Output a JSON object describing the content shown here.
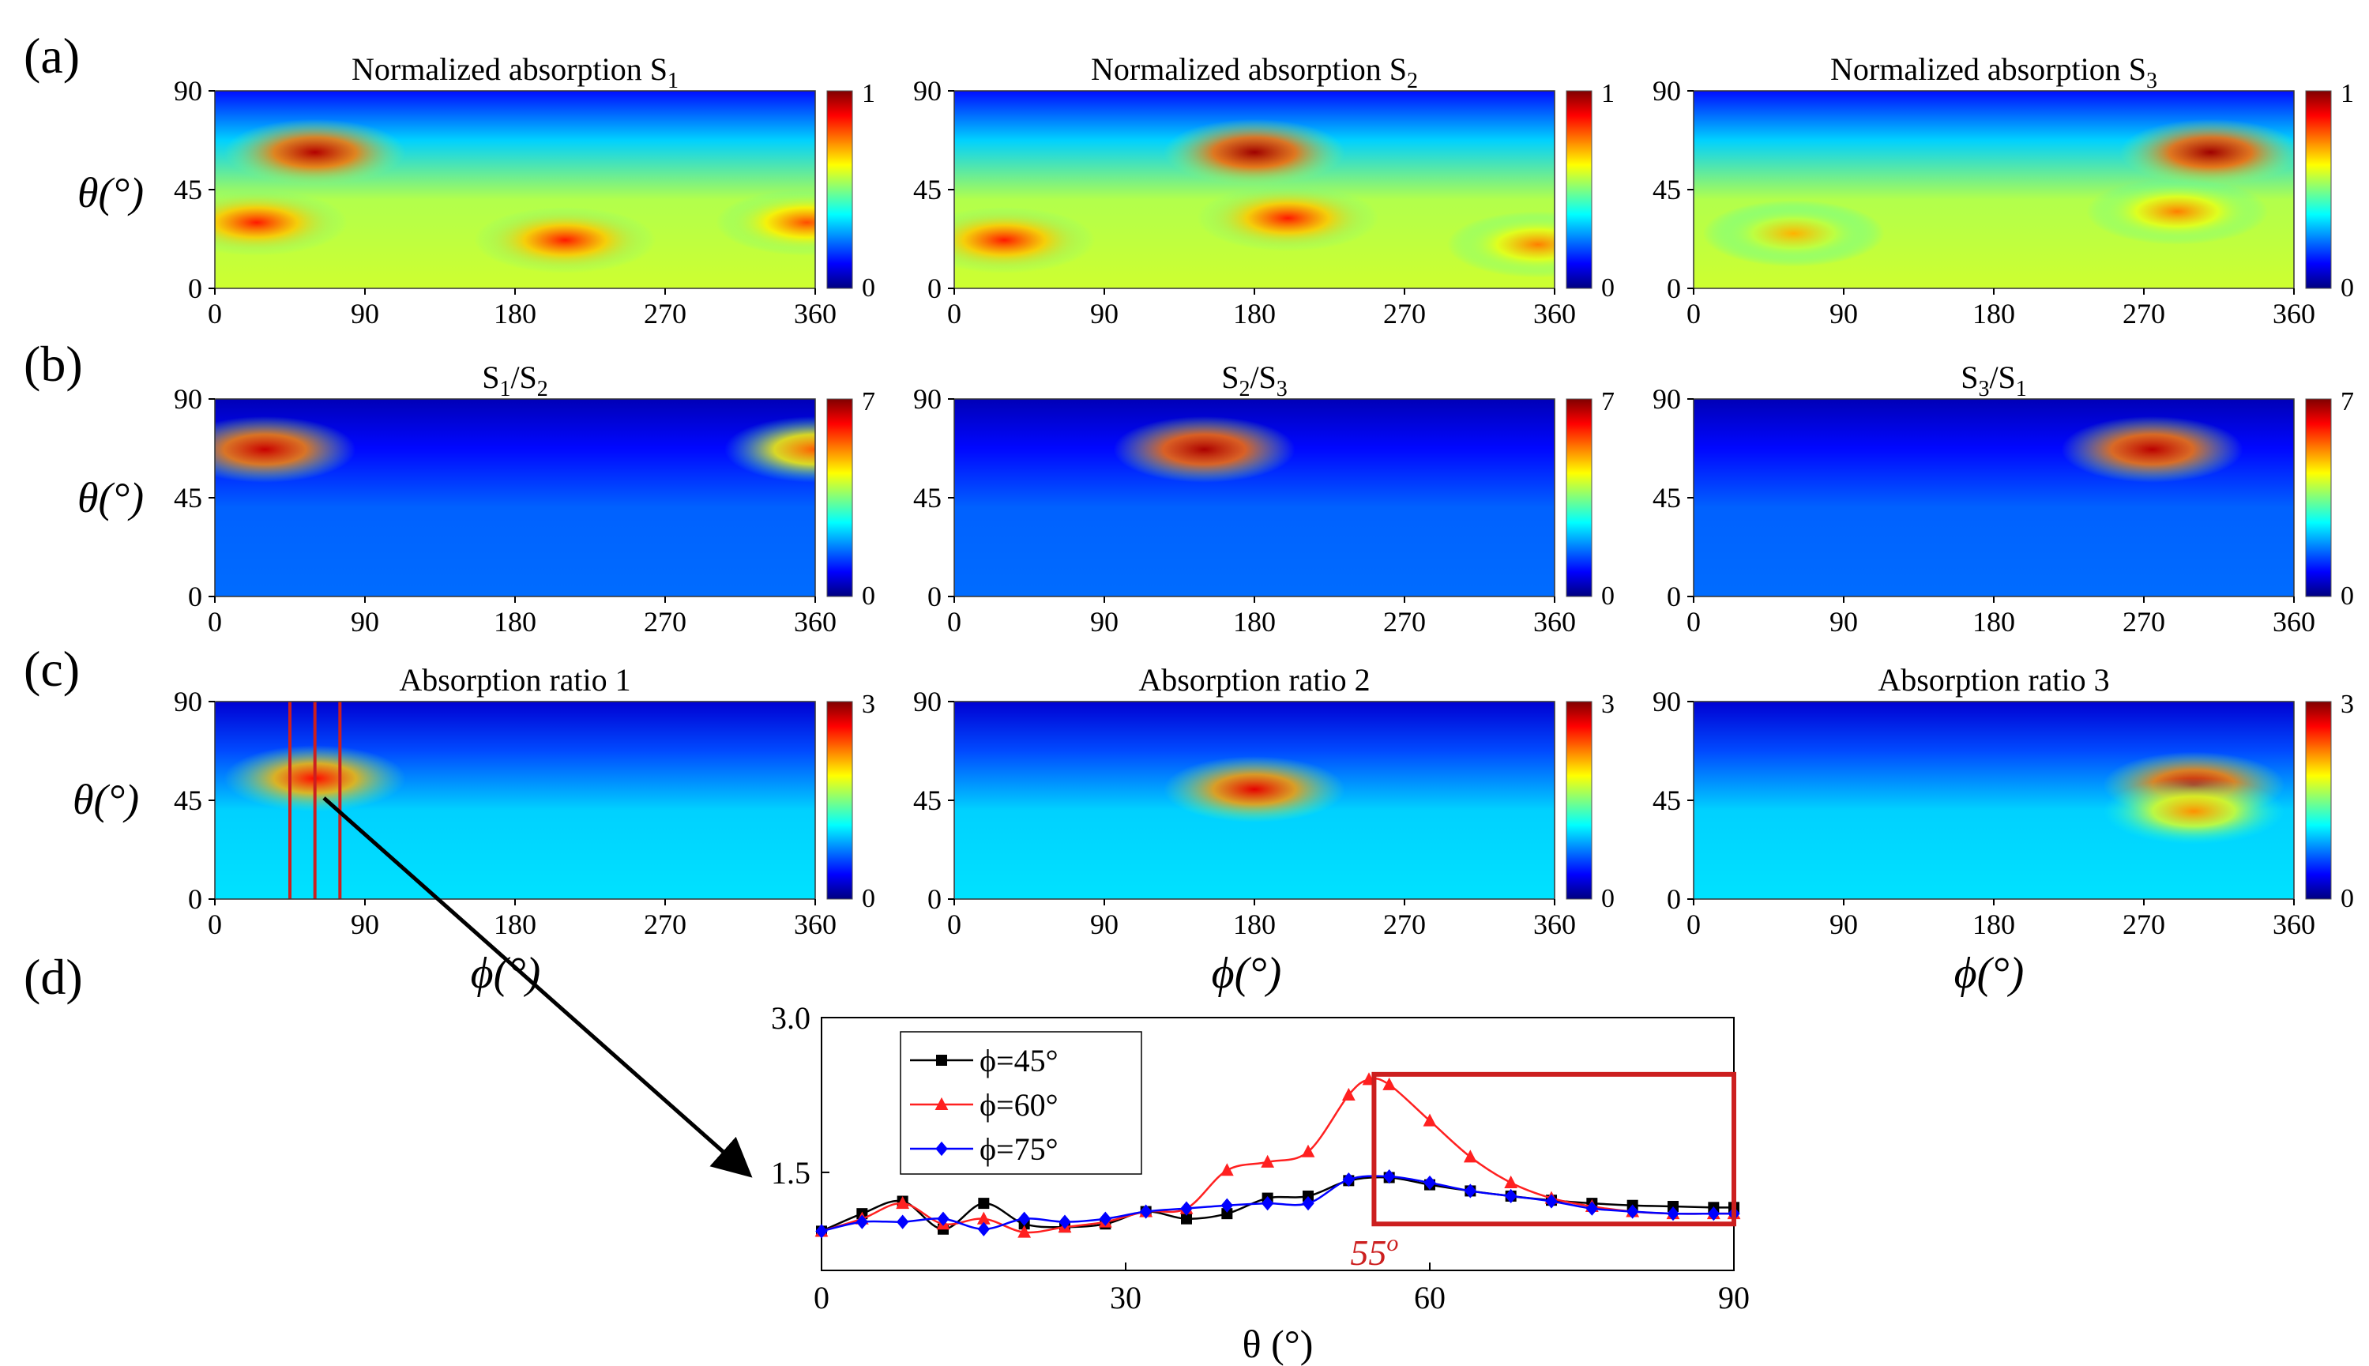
{
  "panel_labels": {
    "a": "(a)",
    "b": "(b)",
    "c": "(c)",
    "d": "(d)"
  },
  "colors": {
    "jet": [
      "#00007f",
      "#0000ff",
      "#007fff",
      "#00ffff",
      "#7fff7f",
      "#ffff00",
      "#ff7f00",
      "#ff0000",
      "#7f0000"
    ],
    "series_45": "#000000",
    "series_60": "#ff2020",
    "series_75": "#0000ff",
    "highlight": "#cc1f1f",
    "arrow": "#000000"
  },
  "theta_label": "θ(°)",
  "phi_label": "ϕ(°)",
  "heatmap_xticks": [
    "0",
    "90",
    "180",
    "270",
    "360"
  ],
  "heatmap_yticks": [
    "0",
    "45",
    "90"
  ],
  "chart_data": [
    {
      "type": "heatmap",
      "row": "a",
      "col": 1,
      "title": "Normalized absorption S",
      "title_sub": "1",
      "xlim": [
        0,
        360
      ],
      "ylim": [
        0,
        90
      ],
      "clim": [
        0,
        1
      ],
      "colorbar_ticks": [
        "0",
        "1"
      ],
      "hotspots": [
        {
          "phi": 60,
          "theta": 62,
          "value": 0.95
        },
        {
          "phi": 25,
          "theta": 30,
          "value": 0.85
        },
        {
          "phi": 210,
          "theta": 22,
          "value": 0.85
        },
        {
          "phi": 355,
          "theta": 30,
          "value": 0.8
        }
      ]
    },
    {
      "type": "heatmap",
      "row": "a",
      "col": 2,
      "title": "Normalized absorption S",
      "title_sub": "2",
      "xlim": [
        0,
        360
      ],
      "ylim": [
        0,
        90
      ],
      "clim": [
        0,
        1
      ],
      "colorbar_ticks": [
        "0",
        "1"
      ],
      "hotspots": [
        {
          "phi": 180,
          "theta": 62,
          "value": 0.97
        },
        {
          "phi": 30,
          "theta": 22,
          "value": 0.85
        },
        {
          "phi": 200,
          "theta": 32,
          "value": 0.85
        },
        {
          "phi": 350,
          "theta": 20,
          "value": 0.75
        }
      ]
    },
    {
      "type": "heatmap",
      "row": "a",
      "col": 3,
      "title": "Normalized absorption S",
      "title_sub": "3",
      "xlim": [
        0,
        360
      ],
      "ylim": [
        0,
        90
      ],
      "clim": [
        0,
        1
      ],
      "colorbar_ticks": [
        "0",
        "1"
      ],
      "hotspots": [
        {
          "phi": 310,
          "theta": 62,
          "value": 0.97
        },
        {
          "phi": 290,
          "theta": 35,
          "value": 0.75
        },
        {
          "phi": 60,
          "theta": 25,
          "value": 0.7
        }
      ]
    },
    {
      "type": "heatmap",
      "row": "b",
      "col": 1,
      "title": "S",
      "title_sub": "1",
      "title_mid": "/S",
      "title_sub2": "2",
      "xlim": [
        0,
        360
      ],
      "ylim": [
        0,
        90
      ],
      "clim": [
        0,
        7
      ],
      "colorbar_ticks": [
        "0",
        "7"
      ],
      "hotspots": [
        {
          "phi": 30,
          "theta": 67,
          "value": 6.5
        },
        {
          "phi": 360,
          "theta": 67,
          "value": 5.5
        }
      ]
    },
    {
      "type": "heatmap",
      "row": "b",
      "col": 2,
      "title": "S",
      "title_sub": "2",
      "title_mid": "/S",
      "title_sub2": "3",
      "xlim": [
        0,
        360
      ],
      "ylim": [
        0,
        90
      ],
      "clim": [
        0,
        7
      ],
      "colorbar_ticks": [
        "0",
        "7"
      ],
      "hotspots": [
        {
          "phi": 150,
          "theta": 67,
          "value": 6.7
        }
      ]
    },
    {
      "type": "heatmap",
      "row": "b",
      "col": 3,
      "title": "S",
      "title_sub": "3",
      "title_mid": "/S",
      "title_sub2": "1",
      "xlim": [
        0,
        360
      ],
      "ylim": [
        0,
        90
      ],
      "clim": [
        0,
        7
      ],
      "colorbar_ticks": [
        "0",
        "7"
      ],
      "hotspots": [
        {
          "phi": 275,
          "theta": 67,
          "value": 6.6
        }
      ]
    },
    {
      "type": "heatmap",
      "row": "c",
      "col": 1,
      "title": "Absorption ratio 1",
      "xlim": [
        0,
        360
      ],
      "ylim": [
        0,
        90
      ],
      "clim": [
        0,
        3
      ],
      "colorbar_ticks": [
        "0",
        "3"
      ],
      "hotspots": [
        {
          "phi": 60,
          "theta": 55,
          "value": 2.6
        }
      ],
      "markers": [
        45,
        60,
        75
      ]
    },
    {
      "type": "heatmap",
      "row": "c",
      "col": 2,
      "title": "Absorption ratio 2",
      "xlim": [
        0,
        360
      ],
      "ylim": [
        0,
        90
      ],
      "clim": [
        0,
        3
      ],
      "colorbar_ticks": [
        "0",
        "3"
      ],
      "hotspots": [
        {
          "phi": 180,
          "theta": 50,
          "value": 2.7
        }
      ]
    },
    {
      "type": "heatmap",
      "row": "c",
      "col": 3,
      "title": "Absorption ratio 3",
      "xlim": [
        0,
        360
      ],
      "ylim": [
        0,
        90
      ],
      "clim": [
        0,
        3
      ],
      "colorbar_ticks": [
        "0",
        "3"
      ],
      "hotspots": [
        {
          "phi": 300,
          "theta": 52,
          "value": 2.8
        },
        {
          "phi": 300,
          "theta": 40,
          "value": 2.2
        }
      ]
    },
    {
      "type": "line",
      "row": "d",
      "xlabel": "θ (°)",
      "xlim": [
        0,
        90
      ],
      "ylim": [
        0.55,
        3.0
      ],
      "xticks": [
        "0",
        "30",
        "60",
        "90"
      ],
      "yticks": [
        "1.5",
        "3.0"
      ],
      "annotation": "55",
      "annotation_sup": "o",
      "highlight_box": {
        "x": [
          54.5,
          90
        ],
        "y": [
          1.0,
          2.45
        ]
      },
      "series": [
        {
          "name": "ϕ=45°",
          "color": "#000000",
          "marker": "square",
          "x": [
            0,
            4,
            8,
            12,
            16,
            20,
            24,
            28,
            32,
            36,
            40,
            44,
            48,
            52,
            56,
            60,
            64,
            68,
            72,
            76,
            80,
            84,
            88,
            90
          ],
          "y": [
            0.93,
            1.1,
            1.22,
            0.95,
            1.2,
            1.0,
            0.97,
            1.0,
            1.12,
            1.05,
            1.1,
            1.25,
            1.27,
            1.42,
            1.45,
            1.38,
            1.32,
            1.27,
            1.23,
            1.2,
            1.18,
            1.17,
            1.16,
            1.16
          ]
        },
        {
          "name": "ϕ=60°",
          "color": "#ff2020",
          "marker": "triangle",
          "x": [
            0,
            4,
            8,
            12,
            16,
            20,
            24,
            28,
            32,
            36,
            40,
            44,
            48,
            52,
            54,
            56,
            60,
            64,
            68,
            72,
            76,
            80,
            84,
            88,
            90
          ],
          "y": [
            0.93,
            1.05,
            1.2,
            1.0,
            1.05,
            0.92,
            0.97,
            1.02,
            1.12,
            1.15,
            1.52,
            1.6,
            1.7,
            2.25,
            2.4,
            2.35,
            2.0,
            1.65,
            1.4,
            1.25,
            1.17,
            1.12,
            1.1,
            1.1,
            1.1
          ]
        },
        {
          "name": "ϕ=75°",
          "color": "#0000ff",
          "marker": "diamond",
          "x": [
            0,
            4,
            8,
            12,
            16,
            20,
            24,
            28,
            32,
            36,
            40,
            44,
            48,
            52,
            56,
            60,
            64,
            68,
            72,
            76,
            80,
            84,
            88,
            90
          ],
          "y": [
            0.93,
            1.02,
            1.02,
            1.05,
            0.95,
            1.05,
            1.02,
            1.05,
            1.12,
            1.15,
            1.18,
            1.2,
            1.2,
            1.43,
            1.46,
            1.4,
            1.32,
            1.27,
            1.22,
            1.15,
            1.12,
            1.1,
            1.1,
            1.1
          ]
        }
      ]
    }
  ]
}
